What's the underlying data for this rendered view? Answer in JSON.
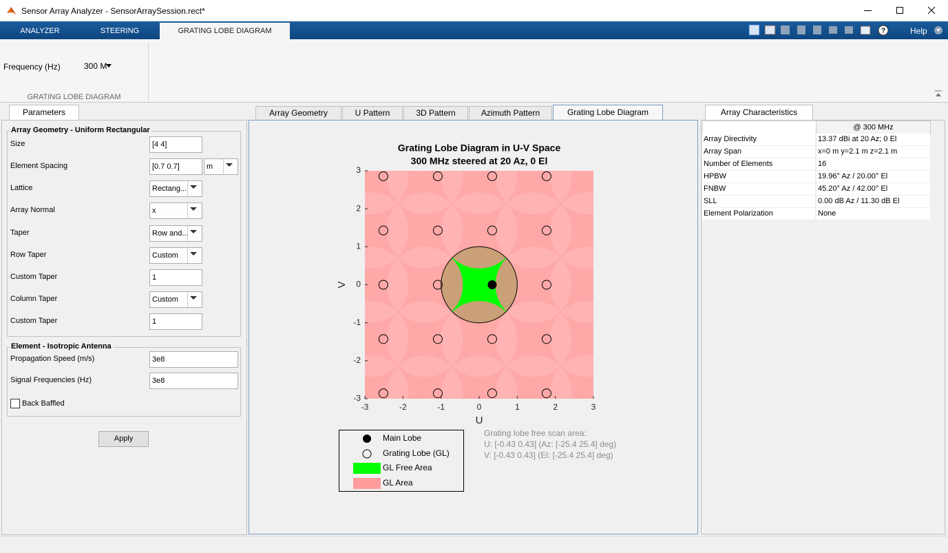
{
  "window": {
    "title": "Sensor Array Analyzer - SensorArraySession.rect*"
  },
  "toolstrip": {
    "tabs": [
      "ANALYZER",
      "STEERING",
      "GRATING LOBE DIAGRAM"
    ],
    "help": "Help",
    "frequency_label": "Frequency (Hz)",
    "frequency_value": "300 M",
    "section": "GRATING LOBE DIAGRAM"
  },
  "parameters": {
    "tab": "Parameters",
    "geometry_group": "Array Geometry - Uniform Rectangular",
    "geometry_fields": [
      {
        "label": "Size",
        "value": "[4 4]"
      },
      {
        "label": "Element Spacing",
        "value": "[0.7 0.7]",
        "unit": "m"
      },
      {
        "label": "Lattice",
        "value": "Rectang..."
      },
      {
        "label": "Array Normal",
        "value": "x"
      },
      {
        "label": "Taper",
        "value": "Row and..."
      },
      {
        "label": "Row Taper",
        "value": "Custom"
      },
      {
        "label": "Custom Taper",
        "value": "1"
      },
      {
        "label": "Column Taper",
        "value": "Custom"
      },
      {
        "label": "Custom Taper",
        "value": "1"
      }
    ],
    "element_group": "Element - Isotropic Antenna",
    "element_fields": [
      {
        "label": "Propagation Speed (m/s)",
        "value": "3e8"
      },
      {
        "label": "Signal Frequencies (Hz)",
        "value": "3e8"
      }
    ],
    "back_baffled": "Back Baffled",
    "apply": "Apply"
  },
  "plot_tabs": [
    "Array Geometry",
    "U Pattern",
    "3D Pattern",
    "Azimuth Pattern",
    "Grating Lobe Diagram"
  ],
  "chart_data": {
    "type": "scatter",
    "title": "Grating Lobe Diagram in U-V Space",
    "subtitle": "300 MHz steered at 20 Az, 0 El",
    "x_label": "U",
    "y_label": "V",
    "xlim": [
      -3,
      3
    ],
    "ylim": [
      -3,
      3
    ],
    "xticks": [
      -3,
      -2,
      -1,
      0,
      1,
      2,
      3
    ],
    "yticks": [
      -3,
      -2,
      -1,
      0,
      1,
      2,
      3
    ],
    "series": [
      {
        "name": "Main Lobe",
        "color": "#000000",
        "x": [
          0.342
        ],
        "y": [
          0
        ]
      },
      {
        "name": "Grating Lobe (GL)",
        "color": "#000000",
        "x": [
          -2.515,
          -1.086,
          0.342,
          1.77,
          -2.515,
          -1.086,
          0.342,
          1.77,
          -2.515,
          -1.086,
          1.77,
          -2.515,
          -1.086,
          0.342,
          1.77,
          -2.515,
          -1.086,
          0.342,
          1.77
        ],
        "y": [
          2.857,
          2.857,
          2.857,
          2.857,
          1.429,
          1.429,
          1.429,
          1.429,
          0,
          0,
          0,
          -1.429,
          -1.429,
          -1.429,
          -1.429,
          -2.857,
          -2.857,
          -2.857,
          -2.857
        ]
      }
    ],
    "regions": [
      {
        "name": "GL Free Area",
        "color": "#00ff00"
      },
      {
        "name": "GL Area",
        "color": "#ff9c9c"
      }
    ],
    "annotation": [
      "Grating lobe free scan area:",
      "U: [-0.43 0.43] (Az: [-25.4 25.4] deg)",
      "V: [-0.43 0.43] (El: [-25.4 25.4] deg)"
    ]
  },
  "characteristics": {
    "tab": "Array Characteristics",
    "header": "@ 300 MHz",
    "rows": [
      [
        "Array Directivity",
        "13.37 dBi at 20 Az; 0 El"
      ],
      [
        "Array Span",
        "x=0 m y=2.1 m z=2.1 m"
      ],
      [
        "Number of Elements",
        "16"
      ],
      [
        "HPBW",
        "19.96° Az / 20.00° El"
      ],
      [
        "FNBW",
        "45.20° Az / 42.00° El"
      ],
      [
        "SLL",
        "0.00 dB Az / 11.30 dB El"
      ],
      [
        "Element Polarization",
        "None"
      ]
    ]
  }
}
